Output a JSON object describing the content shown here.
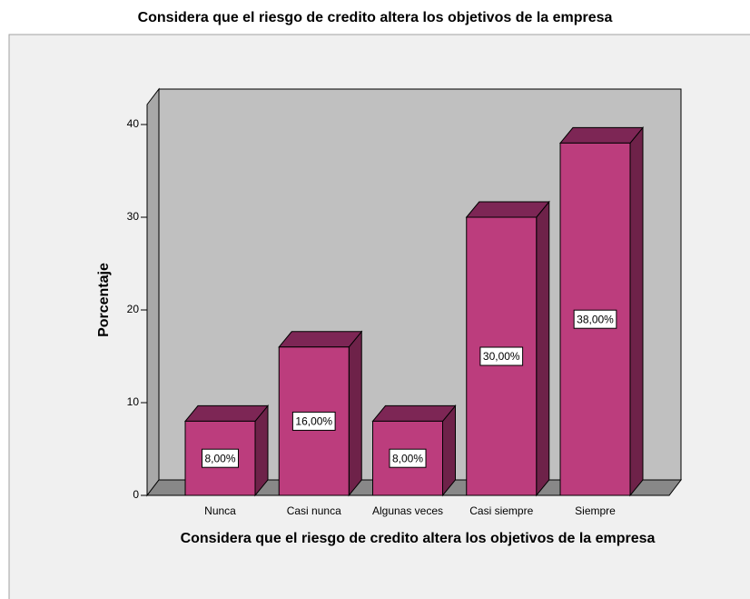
{
  "chart_data": {
    "type": "bar3d",
    "title": "Considera que el riesgo de credito altera los objetivos de la empresa",
    "x_label": "Considera que el riesgo de credito altera los objetivos de la empresa",
    "y_label": "Porcentaje",
    "categories": [
      "Nunca",
      "Casi nunca",
      "Algunas veces",
      "Casi siempre",
      "Siempre"
    ],
    "values": [
      8,
      16,
      8,
      30,
      38
    ],
    "value_labels": [
      "8,00%",
      "16,00%",
      "8,00%",
      "30,00%",
      "38,00%"
    ],
    "color": "#bc3d7d",
    "ylim": [
      0,
      44
    ],
    "yticks": [
      0,
      10,
      20,
      30,
      40
    ]
  }
}
